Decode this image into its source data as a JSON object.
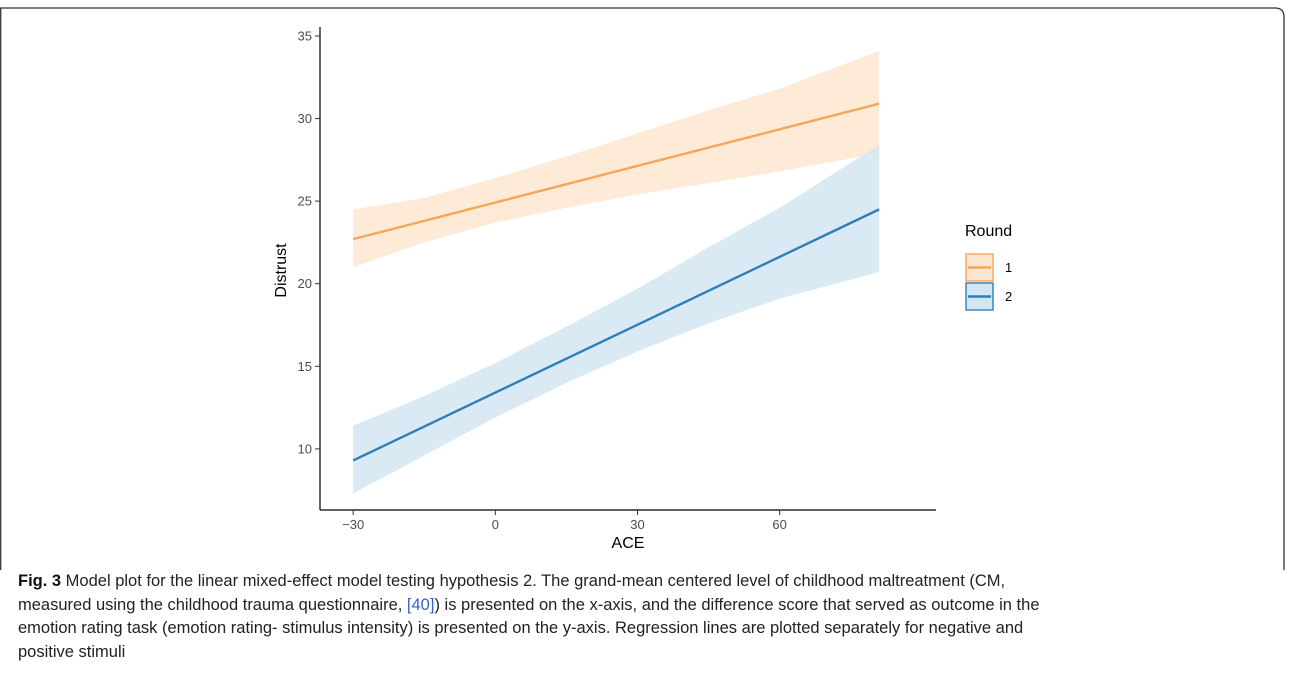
{
  "chart_data": {
    "type": "line",
    "xlabel": "ACE",
    "ylabel": "Distrust",
    "xlim": [
      -37,
      93
    ],
    "ylim": [
      6.3,
      35.3
    ],
    "x_ticks": [
      -30,
      0,
      30,
      60
    ],
    "x_tick_labels": [
      "−30",
      "0",
      "30",
      "60"
    ],
    "y_ticks": [
      10,
      15,
      20,
      25,
      30,
      35
    ],
    "y_tick_labels": [
      "10",
      "15",
      "20",
      "25",
      "30",
      "35"
    ],
    "legend": {
      "title": "Round",
      "placement": "right"
    },
    "grid": false,
    "series": [
      {
        "name": "1",
        "color": "#F4A65A",
        "band_color": "#FDE6D0",
        "x": [
          -30,
          81
        ],
        "y": [
          22.7,
          30.9
        ],
        "lower": [
          21.0,
          27.9
        ],
        "upper": [
          24.5,
          34.1
        ],
        "ci_x": [
          -30,
          -15,
          0,
          15,
          30,
          45,
          60,
          81
        ],
        "ci_lower": [
          21.0,
          22.5,
          23.7,
          24.6,
          25.4,
          26.1,
          26.8,
          27.9
        ],
        "ci_upper": [
          24.5,
          25.2,
          26.4,
          27.7,
          29.1,
          30.5,
          31.8,
          34.1
        ]
      },
      {
        "name": "2",
        "color": "#2E7FB8",
        "band_color": "#D3E6F2",
        "x": [
          -30,
          81
        ],
        "y": [
          9.3,
          24.5
        ],
        "ci_x": [
          -30,
          -15,
          0,
          15,
          30,
          45,
          60,
          81
        ],
        "ci_lower": [
          7.3,
          9.6,
          11.9,
          14.0,
          15.9,
          17.6,
          19.1,
          20.7
        ],
        "ci_upper": [
          11.4,
          13.2,
          15.2,
          17.4,
          19.7,
          22.2,
          24.6,
          28.4
        ]
      }
    ]
  },
  "caption": {
    "lead": "Fig. 3",
    "line1": " Model plot for the linear mixed-effect model testing hypothesis 2. The grand-mean centered level of childhood maltreatment (CM,",
    "line2_pre": "measured using the childhood trauma questionnaire, ",
    "line2_ref": "[40]",
    "line2_post": ") is presented on the x-axis, and the difference score that served as outcome in the",
    "line3": "emotion rating task (emotion rating- stimulus intensity) is presented on the y-axis. Regression lines are plotted separately for negative and",
    "line4": "positive stimuli"
  }
}
